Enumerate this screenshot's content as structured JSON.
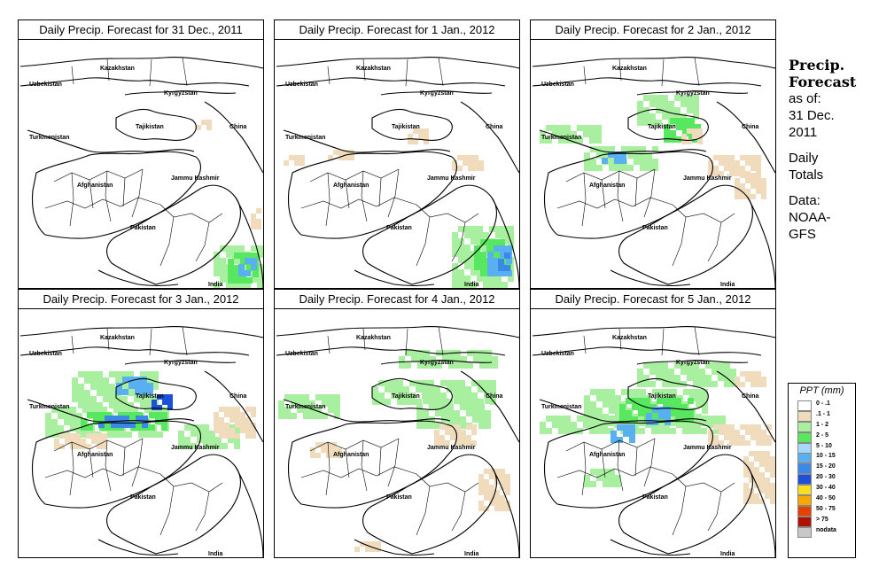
{
  "panels": [
    {
      "title": "Daily Precip. Forecast for  31 Dec., 2011",
      "label_set": "full",
      "precip": "day1"
    },
    {
      "title": "Daily Precip. Forecast for  1 Jan., 2012",
      "label_set": "full",
      "precip": "day2"
    },
    {
      "title": "Daily Precip. Forecast for  2 Jan., 2012",
      "label_set": "full",
      "precip": "day3"
    },
    {
      "title": "Daily Precip. Forecast for  3 Jan., 2012",
      "label_set": "full",
      "precip": "day4"
    },
    {
      "title": "Daily Precip. Forecast for  4 Jan., 2012",
      "label_set": "full",
      "precip": "day5"
    },
    {
      "title": "Daily Precip. Forecast for  5 Jan., 2012",
      "label_set": "full",
      "precip": "day6"
    }
  ],
  "map_labels": {
    "kazakhstan": "Kazakhstan",
    "uzbekistan": "Uzbekistan",
    "kyrgyzstan": "Kyrgyzstan",
    "tajikistan": "Tajikistan",
    "china": "China",
    "turkmenistan": "Turkmenistan",
    "afghanistan": "Afghanistan",
    "jammu_kashmir": "Jammu Kashmir",
    "pakistan": "Pakistan",
    "india": "India"
  },
  "sidebar": {
    "heading1": "Precip.",
    "heading2": "Forecast",
    "line1": "as of:",
    "line2": "31 Dec.",
    "line3": "2011",
    "line4": "Daily",
    "line5": "Totals",
    "line6": "Data:",
    "line7": "NOAA-",
    "line8": "GFS"
  },
  "legend": {
    "title": "PPT (mm)",
    "items": [
      {
        "label": "0 - .1",
        "color": "#ffffff"
      },
      {
        "label": ".1 - 1",
        "color": "#f0dcbc"
      },
      {
        "label": "1 - 2",
        "color": "#a8f0a0"
      },
      {
        "label": "2 - 5",
        "color": "#58e860"
      },
      {
        "label": "5 - 10",
        "color": "#a8d8f8"
      },
      {
        "label": "10 - 15",
        "color": "#58b0f0"
      },
      {
        "label": "15 - 20",
        "color": "#3c88e8"
      },
      {
        "label": "20 - 30",
        "color": "#1c50d8"
      },
      {
        "label": "30 - 40",
        "color": "#f8e020"
      },
      {
        "label": "40 - 50",
        "color": "#f8a800"
      },
      {
        "label": "50 - 75",
        "color": "#e84000"
      },
      {
        "label": "> 75",
        "color": "#b01000"
      },
      {
        "label": "nodata",
        "color": "#c8c8c8"
      }
    ]
  }
}
